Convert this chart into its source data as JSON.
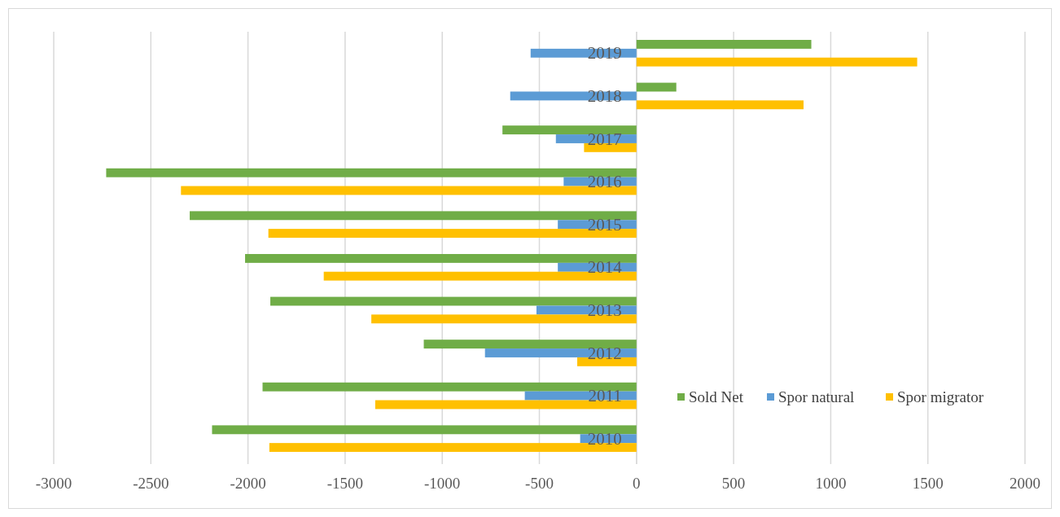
{
  "chart_data": {
    "type": "bar",
    "orientation": "horizontal",
    "categories": [
      "2019",
      "2018",
      "2017",
      "2016",
      "2015",
      "2014",
      "2013",
      "2012",
      "2011",
      "2010"
    ],
    "series": [
      {
        "name": "Sold Net",
        "color": "#70ad47",
        "values": [
          900,
          205,
          -690,
          -2730,
          -2300,
          -2015,
          -1885,
          -1095,
          -1925,
          -2185
        ]
      },
      {
        "name": "Spor natural",
        "color": "#5b9bd5",
        "values": [
          -545,
          -650,
          -415,
          -375,
          -405,
          -405,
          -515,
          -780,
          -575,
          -290
        ]
      },
      {
        "name": "Spor migrator",
        "color": "#ffc000",
        "values": [
          1445,
          860,
          -270,
          -2345,
          -1895,
          -1610,
          -1365,
          -305,
          -1345,
          -1890
        ]
      }
    ],
    "xlim": [
      -3000,
      2000
    ],
    "xticks": [
      -3000,
      -2500,
      -2000,
      -1500,
      -1000,
      -500,
      0,
      500,
      1000,
      1500,
      2000
    ],
    "grid": "x",
    "legend": "bottom right"
  }
}
